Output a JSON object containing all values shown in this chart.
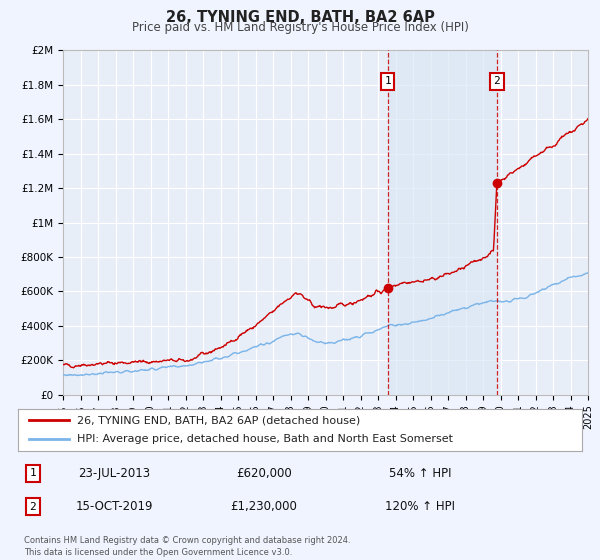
{
  "title": "26, TYNING END, BATH, BA2 6AP",
  "subtitle": "Price paid vs. HM Land Registry's House Price Index (HPI)",
  "ylim": [
    0,
    2000000
  ],
  "xlim": [
    1995,
    2025
  ],
  "yticks": [
    0,
    200000,
    400000,
    600000,
    800000,
    1000000,
    1200000,
    1400000,
    1600000,
    1800000,
    2000000
  ],
  "ytick_labels": [
    "£0",
    "£200K",
    "£400K",
    "£600K",
    "£800K",
    "£1M",
    "£1.2M",
    "£1.4M",
    "£1.6M",
    "£1.8M",
    "£2M"
  ],
  "xticks": [
    1995,
    1996,
    1997,
    1998,
    1999,
    2000,
    2001,
    2002,
    2003,
    2004,
    2005,
    2006,
    2007,
    2008,
    2009,
    2010,
    2011,
    2012,
    2013,
    2014,
    2015,
    2016,
    2017,
    2018,
    2019,
    2020,
    2021,
    2022,
    2023,
    2024,
    2025
  ],
  "background_color": "#f0f4ff",
  "plot_bg_color": "#e8eef8",
  "grid_color": "#ffffff",
  "shade_color": "#dce8f5",
  "red_line_color": "#cc0000",
  "blue_line_color": "#7ab4e8",
  "sale1_x": 2013.55,
  "sale1_y": 620000,
  "sale2_x": 2019.79,
  "sale2_y": 1230000,
  "legend1_text": "26, TYNING END, BATH, BA2 6AP (detached house)",
  "legend2_text": "HPI: Average price, detached house, Bath and North East Somerset",
  "annot1_num": "1",
  "annot1_date": "23-JUL-2013",
  "annot1_price": "£620,000",
  "annot1_hpi": "54% ↑ HPI",
  "annot2_num": "2",
  "annot2_date": "15-OCT-2019",
  "annot2_price": "£1,230,000",
  "annot2_hpi": "120% ↑ HPI",
  "footer1": "Contains HM Land Registry data © Crown copyright and database right 2024.",
  "footer2": "This data is licensed under the Open Government Licence v3.0."
}
